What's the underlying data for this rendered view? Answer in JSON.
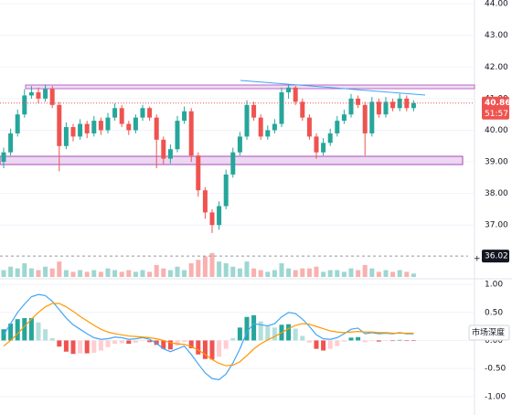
{
  "chart_data": [
    {
      "type": "candlestick",
      "open": [
        39.0,
        39.3,
        39.9,
        40.5,
        41.1,
        41.2,
        41.0,
        41.3,
        40.8,
        39.5,
        40.1,
        39.8,
        40.2,
        39.9,
        40.3,
        40.0,
        40.4,
        40.7,
        40.2,
        40.0,
        40.4,
        40.7,
        40.4,
        39.7,
        39.1,
        39.4,
        40.3,
        40.6,
        39.2,
        38.1,
        37.4,
        37.0,
        37.6,
        38.6,
        39.3,
        39.8,
        40.8,
        40.4,
        39.8,
        40.0,
        40.2,
        41.2,
        41.35,
        40.9,
        40.4,
        39.8,
        39.3,
        39.6,
        39.9,
        40.3,
        40.5,
        41.0,
        40.8,
        39.9,
        40.9,
        40.5,
        40.9,
        40.7,
        41.0,
        40.7
      ],
      "high": [
        39.45,
        40.05,
        40.65,
        41.3,
        41.4,
        41.35,
        41.45,
        41.4,
        40.9,
        40.25,
        40.2,
        40.35,
        40.3,
        40.45,
        40.4,
        40.55,
        40.85,
        40.8,
        40.3,
        40.5,
        40.8,
        40.75,
        40.5,
        39.8,
        39.55,
        40.45,
        40.75,
        40.7,
        39.3,
        38.2,
        37.5,
        37.75,
        38.75,
        39.45,
        39.95,
        40.95,
        40.9,
        40.5,
        40.15,
        40.35,
        41.35,
        41.45,
        41.4,
        41.0,
        40.5,
        39.9,
        39.75,
        40.05,
        40.45,
        40.65,
        41.15,
        41.1,
        40.9,
        41.05,
        41.0,
        41.05,
        41.0,
        41.15,
        41.1,
        40.95
      ],
      "low": [
        38.8,
        39.2,
        39.8,
        40.4,
        41.0,
        40.85,
        40.9,
        40.7,
        38.7,
        39.4,
        39.65,
        39.7,
        39.75,
        39.8,
        39.85,
        39.9,
        40.3,
        40.1,
        39.85,
        39.9,
        40.3,
        40.3,
        38.8,
        38.9,
        38.95,
        39.3,
        40.2,
        39.0,
        37.9,
        37.2,
        36.75,
        36.85,
        37.5,
        38.5,
        39.2,
        39.7,
        40.3,
        39.7,
        39.7,
        39.9,
        40.1,
        41.0,
        40.8,
        40.3,
        39.7,
        39.1,
        39.2,
        39.5,
        39.8,
        40.2,
        40.4,
        40.7,
        39.2,
        39.8,
        40.4,
        40.4,
        40.6,
        40.6,
        40.6,
        40.6
      ],
      "close": [
        39.3,
        39.9,
        40.5,
        41.1,
        41.2,
        41.0,
        41.3,
        40.8,
        39.5,
        40.1,
        39.8,
        40.2,
        39.9,
        40.3,
        40.0,
        40.4,
        40.7,
        40.2,
        40.0,
        40.4,
        40.7,
        40.4,
        39.7,
        39.1,
        39.4,
        40.3,
        40.6,
        39.2,
        38.1,
        37.4,
        37.0,
        37.6,
        38.6,
        39.3,
        39.8,
        40.8,
        40.4,
        39.8,
        40.0,
        40.2,
        41.2,
        41.35,
        40.9,
        40.4,
        39.8,
        39.3,
        39.6,
        39.9,
        40.3,
        40.5,
        41.0,
        40.8,
        39.9,
        40.9,
        40.5,
        40.9,
        40.7,
        41.0,
        40.7,
        40.86
      ],
      "volume": [
        4,
        6,
        5,
        8,
        5,
        4,
        6,
        5,
        9,
        4,
        3,
        4,
        3,
        4,
        3,
        5,
        4,
        3,
        4,
        3,
        4,
        3,
        7,
        5,
        4,
        6,
        4,
        8,
        10,
        12,
        14,
        9,
        8,
        6,
        5,
        9,
        5,
        4,
        3,
        4,
        8,
        5,
        4,
        5,
        5,
        6,
        3,
        4,
        4,
        3,
        5,
        4,
        7,
        5,
        3,
        4,
        3,
        4,
        3,
        2
      ],
      "up_color": "#26a69a",
      "down_color": "#ef5350",
      "ylim": [
        35.3,
        44.12
      ],
      "yticks": [
        {
          "value": 37,
          "label": "37.00"
        },
        {
          "value": 38,
          "label": "38.00"
        },
        {
          "value": 39,
          "label": "39.00"
        },
        {
          "value": 40,
          "label": "40.00"
        },
        {
          "value": 41,
          "label": "41.00"
        },
        {
          "value": 42,
          "label": "42.00"
        },
        {
          "value": 43,
          "label": "43.00"
        },
        {
          "value": 44,
          "label": "44.00"
        }
      ],
      "volume_lim": [
        0,
        16
      ],
      "last_price": 40.86,
      "countdown": "51:57",
      "crosshair_price": 36.02,
      "grid": true
    },
    {
      "type": "macd",
      "series": [
        {
          "name": "MACD",
          "color": "#42a5f5",
          "values": [
            0.1,
            0.3,
            0.5,
            0.65,
            0.78,
            0.82,
            0.8,
            0.7,
            0.55,
            0.4,
            0.28,
            0.2,
            0.12,
            0.05,
            0.02,
            0.03,
            0.06,
            0.05,
            0.02,
            0.03,
            0.05,
            0.02,
            -0.05,
            -0.15,
            -0.2,
            -0.15,
            -0.1,
            -0.25,
            -0.42,
            -0.58,
            -0.68,
            -0.7,
            -0.6,
            -0.4,
            -0.15,
            0.15,
            0.3,
            0.28,
            0.26,
            0.3,
            0.42,
            0.5,
            0.48,
            0.38,
            0.25,
            0.1,
            0.03,
            0.02,
            0.05,
            0.12,
            0.2,
            0.22,
            0.12,
            0.14,
            0.12,
            0.13,
            0.12,
            0.14,
            0.12,
            0.12
          ]
        },
        {
          "name": "Signal",
          "color": "#ff9800",
          "values": [
            -0.1,
            0.0,
            0.12,
            0.25,
            0.38,
            0.5,
            0.6,
            0.66,
            0.66,
            0.6,
            0.52,
            0.43,
            0.35,
            0.27,
            0.2,
            0.15,
            0.12,
            0.1,
            0.08,
            0.07,
            0.06,
            0.05,
            0.03,
            0.0,
            -0.04,
            -0.06,
            -0.07,
            -0.11,
            -0.17,
            -0.25,
            -0.34,
            -0.41,
            -0.45,
            -0.44,
            -0.38,
            -0.27,
            -0.15,
            -0.06,
            0.01,
            0.07,
            0.14,
            0.21,
            0.27,
            0.3,
            0.29,
            0.25,
            0.21,
            0.17,
            0.15,
            0.14,
            0.15,
            0.16,
            0.15,
            0.15,
            0.14,
            0.14,
            0.13,
            0.13,
            0.13,
            0.13
          ]
        }
      ],
      "histogram": [
        0.2,
        0.3,
        0.38,
        0.4,
        0.4,
        0.32,
        0.2,
        0.04,
        -0.11,
        -0.2,
        -0.24,
        -0.23,
        -0.23,
        -0.22,
        -0.18,
        -0.12,
        -0.06,
        -0.05,
        -0.06,
        -0.04,
        -0.01,
        -0.03,
        -0.08,
        -0.15,
        -0.16,
        -0.09,
        -0.03,
        -0.14,
        -0.25,
        -0.33,
        -0.34,
        -0.29,
        -0.15,
        0.04,
        0.23,
        0.42,
        0.45,
        0.34,
        0.25,
        0.23,
        0.28,
        0.29,
        0.21,
        0.08,
        -0.04,
        -0.15,
        -0.18,
        -0.15,
        -0.1,
        -0.02,
        0.05,
        0.06,
        -0.03,
        -0.01,
        -0.02,
        -0.01,
        -0.01,
        0.01,
        -0.01,
        -0.01
      ],
      "ylim": [
        -1.33,
        1.1
      ],
      "yticks": [
        {
          "value": 1,
          "label": "1.00"
        },
        {
          "value": 0.5,
          "label": "0.50"
        },
        {
          "value": 0,
          "label": "0.00"
        },
        {
          "value": -0.5,
          "label": "-0.50"
        },
        {
          "value": -1,
          "label": "-1.00"
        }
      ],
      "button": "市场深度"
    }
  ]
}
